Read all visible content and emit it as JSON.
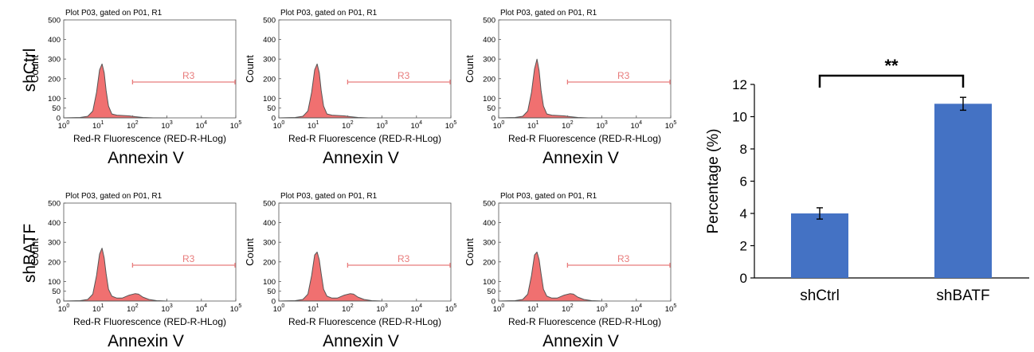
{
  "figure": {
    "row_labels": [
      "shCtrl",
      "shBATF"
    ],
    "colors": {
      "histogram_fill": "#f07070",
      "histogram_stroke": "#555555",
      "gate_line": "#e87c7c",
      "bar_fill": "#4472c4"
    }
  },
  "chart_data": [
    {
      "type": "area",
      "panel": "shCtrl-1",
      "row": "shCtrl",
      "plot_title": "Plot P03, gated on P01, R1",
      "ylabel": "Count",
      "yticks": [
        "500",
        "400",
        "300",
        "200",
        "100",
        "50",
        "0"
      ],
      "ylim": [
        0,
        500
      ],
      "xscale": "log",
      "xlim": [
        1,
        100000
      ],
      "xtick_bases": [
        "10",
        "10",
        "10",
        "10",
        "10",
        "10"
      ],
      "xtick_exps": [
        "0",
        "1",
        "2",
        "3",
        "4",
        "5"
      ],
      "xlabel": "Red-R Fluorescence (RED-R-HLog)",
      "caption": "Annexin V",
      "gate": {
        "label": "R3",
        "range": [
          100,
          100000
        ]
      },
      "x": [
        1,
        3,
        5,
        7,
        9,
        11,
        13,
        15,
        17,
        20,
        25,
        35,
        50,
        80,
        120,
        200,
        400,
        1000
      ],
      "y": [
        0,
        2,
        8,
        35,
        130,
        245,
        275,
        230,
        140,
        60,
        20,
        14,
        12,
        10,
        6,
        2,
        0,
        0
      ]
    },
    {
      "type": "area",
      "panel": "shCtrl-2",
      "row": "shCtrl",
      "plot_title": "Plot P03, gated on P01, R1",
      "ylabel": "Count",
      "yticks": [
        "500",
        "400",
        "300",
        "200",
        "100",
        "50",
        "0"
      ],
      "ylim": [
        0,
        500
      ],
      "xscale": "log",
      "xlim": [
        1,
        100000
      ],
      "xtick_bases": [
        "10",
        "10",
        "10",
        "10",
        "10",
        "10"
      ],
      "xtick_exps": [
        "0",
        "1",
        "2",
        "3",
        "4",
        "5"
      ],
      "xlabel": "Red-R Fluorescence (RED-R-HLog)",
      "caption": "Annexin V",
      "gate": {
        "label": "R3",
        "range": [
          100,
          100000
        ]
      },
      "x": [
        1,
        3,
        5,
        7,
        9,
        11,
        13,
        15,
        17,
        20,
        25,
        35,
        50,
        80,
        120,
        200,
        400,
        1000
      ],
      "y": [
        0,
        2,
        8,
        35,
        130,
        245,
        275,
        230,
        140,
        60,
        20,
        14,
        12,
        10,
        6,
        2,
        0,
        0
      ]
    },
    {
      "type": "area",
      "panel": "shCtrl-3",
      "row": "shCtrl",
      "plot_title": "Plot P03, gated on P01, R1",
      "ylabel": "Count",
      "yticks": [
        "500",
        "400",
        "300",
        "200",
        "100",
        "50",
        "0"
      ],
      "ylim": [
        0,
        500
      ],
      "xscale": "log",
      "xlim": [
        1,
        100000
      ],
      "xtick_bases": [
        "10",
        "10",
        "10",
        "10",
        "10",
        "10"
      ],
      "xtick_exps": [
        "0",
        "1",
        "2",
        "3",
        "4",
        "5"
      ],
      "xlabel": "Red-R Fluorescence (RED-R-HLog)",
      "caption": "Annexin V",
      "gate": {
        "label": "R3",
        "range": [
          100,
          100000
        ]
      },
      "x": [
        1,
        3,
        5,
        7,
        9,
        11,
        13,
        15,
        17,
        20,
        25,
        35,
        50,
        80,
        120,
        200,
        400,
        1000
      ],
      "y": [
        0,
        2,
        8,
        35,
        130,
        250,
        300,
        240,
        140,
        60,
        20,
        14,
        12,
        10,
        6,
        2,
        0,
        0
      ]
    },
    {
      "type": "area",
      "panel": "shBATF-1",
      "row": "shBATF",
      "plot_title": "Plot P03, gated on P01, R1",
      "ylabel": "Count",
      "yticks": [
        "500",
        "400",
        "300",
        "200",
        "100",
        "50",
        "0"
      ],
      "ylim": [
        0,
        500
      ],
      "xscale": "log",
      "xlim": [
        1,
        100000
      ],
      "xtick_bases": [
        "10",
        "10",
        "10",
        "10",
        "10",
        "10"
      ],
      "xtick_exps": [
        "0",
        "1",
        "2",
        "3",
        "4",
        "5"
      ],
      "xlabel": "Red-R Fluorescence (RED-R-HLog)",
      "caption": "Annexin V",
      "gate": {
        "label": "R3",
        "range": [
          100,
          100000
        ]
      },
      "x": [
        1,
        3,
        5,
        7,
        9,
        11,
        13,
        15,
        17,
        20,
        25,
        35,
        50,
        80,
        120,
        150,
        200,
        300,
        500,
        1000
      ],
      "y": [
        0,
        2,
        8,
        35,
        130,
        240,
        270,
        220,
        140,
        60,
        25,
        15,
        15,
        30,
        38,
        35,
        20,
        8,
        2,
        0
      ]
    },
    {
      "type": "area",
      "panel": "shBATF-2",
      "row": "shBATF",
      "plot_title": "Plot P03, gated on P01, R1",
      "ylabel": "Count",
      "yticks": [
        "500",
        "400",
        "300",
        "200",
        "100",
        "50",
        "0"
      ],
      "ylim": [
        0,
        500
      ],
      "xscale": "log",
      "xlim": [
        1,
        100000
      ],
      "xtick_bases": [
        "10",
        "10",
        "10",
        "10",
        "10",
        "10"
      ],
      "xtick_exps": [
        "0",
        "1",
        "2",
        "3",
        "4",
        "5"
      ],
      "xlabel": "Red-R Fluorescence (RED-R-HLog)",
      "caption": "Annexin V",
      "gate": {
        "label": "R3",
        "range": [
          100,
          100000
        ]
      },
      "x": [
        1,
        3,
        5,
        7,
        9,
        11,
        13,
        15,
        17,
        20,
        25,
        35,
        50,
        80,
        120,
        150,
        200,
        300,
        500,
        1000
      ],
      "y": [
        0,
        2,
        8,
        35,
        130,
        235,
        250,
        210,
        140,
        60,
        25,
        15,
        15,
        30,
        38,
        35,
        20,
        8,
        2,
        0
      ]
    },
    {
      "type": "area",
      "panel": "shBATF-3",
      "row": "shBATF",
      "plot_title": "Plot P03, gated on P01, R1",
      "ylabel": "Count",
      "yticks": [
        "500",
        "400",
        "300",
        "200",
        "100",
        "50",
        "0"
      ],
      "ylim": [
        0,
        500
      ],
      "xscale": "log",
      "xlim": [
        1,
        100000
      ],
      "xtick_bases": [
        "10",
        "10",
        "10",
        "10",
        "10",
        "10"
      ],
      "xtick_exps": [
        "0",
        "1",
        "2",
        "3",
        "4",
        "5"
      ],
      "xlabel": "Red-R Fluorescence (RED-R-HLog)",
      "caption": "Annexin V",
      "gate": {
        "label": "R3",
        "range": [
          100,
          100000
        ]
      },
      "x": [
        1,
        3,
        5,
        7,
        9,
        11,
        13,
        15,
        17,
        20,
        25,
        35,
        50,
        80,
        120,
        150,
        200,
        300,
        500,
        1000
      ],
      "y": [
        0,
        2,
        8,
        35,
        130,
        235,
        250,
        210,
        140,
        60,
        25,
        15,
        15,
        30,
        38,
        35,
        20,
        8,
        2,
        0
      ]
    },
    {
      "type": "bar",
      "panel": "percentage-bars",
      "categories": [
        "shCtrl",
        "shBATF"
      ],
      "values": [
        4.0,
        10.8
      ],
      "errors": [
        0.35,
        0.4
      ],
      "ylabel": "Percentage (%)",
      "ylim": [
        0,
        12
      ],
      "yticks": [
        "0",
        "2",
        "4",
        "6",
        "8",
        "10",
        "12"
      ],
      "significance": "**"
    }
  ]
}
